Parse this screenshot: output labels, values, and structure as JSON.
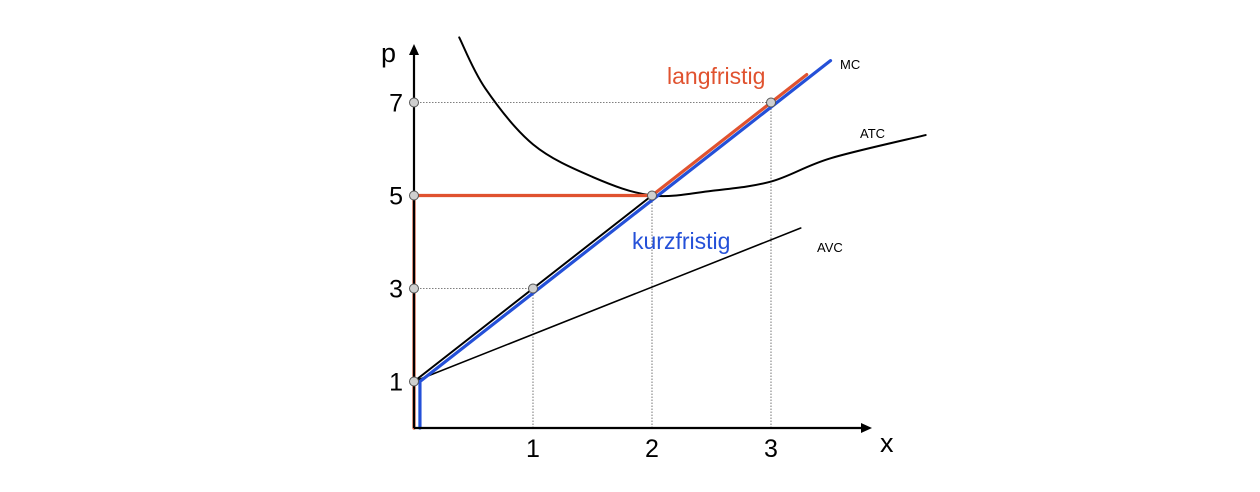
{
  "colors": {
    "axis": "#000000",
    "curve": "#000000",
    "long_run": "#e0522f",
    "short_run": "#2450d8",
    "guide": "#555555",
    "marker_fill": "#cfcfcf"
  },
  "chart_data": {
    "type": "line",
    "title": "",
    "xlabel": "x",
    "ylabel": "p",
    "xlim": [
      0,
      4
    ],
    "ylim": [
      0,
      8
    ],
    "x_ticks": [
      1,
      2,
      3
    ],
    "y_ticks": [
      1,
      3,
      5,
      7
    ],
    "grid": false,
    "series": [
      {
        "name": "MC",
        "color": "#000000",
        "x": [
          0,
          3.3
        ],
        "y": [
          1,
          7.6
        ]
      },
      {
        "name": "ATC",
        "color": "#000000",
        "x": [
          0.38,
          0.6,
          1.0,
          1.5,
          2.0,
          2.5,
          3.0,
          3.5,
          4.3
        ],
        "y": [
          8.4,
          7.3,
          6.1,
          5.4,
          5.0,
          5.1,
          5.3,
          5.8,
          6.3
        ]
      },
      {
        "name": "AVC",
        "color": "#000000",
        "x": [
          0,
          3.25
        ],
        "y": [
          1,
          4.3
        ]
      },
      {
        "name": "langfristig",
        "color": "#e0522f",
        "x": [
          0,
          0,
          2,
          3.3
        ],
        "y": [
          0,
          5,
          5,
          7.6
        ]
      },
      {
        "name": "kurzfristig",
        "color": "#2450d8",
        "x": [
          0.05,
          0.05,
          3.5
        ],
        "y": [
          0,
          1,
          7.9
        ]
      }
    ],
    "points": [
      {
        "x": 0,
        "y": 1
      },
      {
        "x": 0,
        "y": 3
      },
      {
        "x": 0,
        "y": 5
      },
      {
        "x": 0,
        "y": 7
      },
      {
        "x": 1,
        "y": 3
      },
      {
        "x": 2,
        "y": 5
      },
      {
        "x": 3,
        "y": 7
      }
    ],
    "guides": [
      {
        "from": [
          0,
          3
        ],
        "to": [
          1,
          3
        ]
      },
      {
        "from": [
          1,
          0
        ],
        "to": [
          1,
          3
        ]
      },
      {
        "from": [
          2,
          0
        ],
        "to": [
          2,
          5
        ]
      },
      {
        "from": [
          0,
          7
        ],
        "to": [
          3,
          7
        ]
      },
      {
        "from": [
          3,
          0
        ],
        "to": [
          3,
          7
        ]
      }
    ]
  }
}
